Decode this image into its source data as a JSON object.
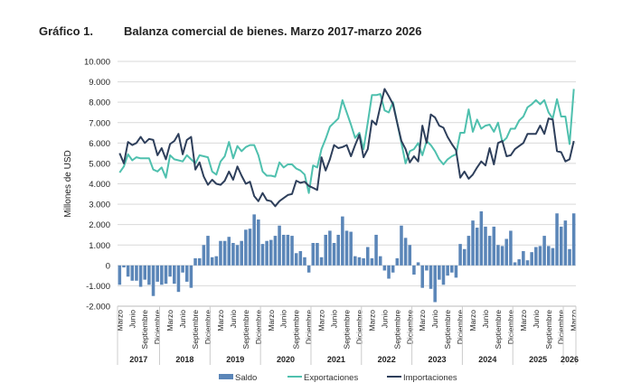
{
  "header": {
    "label": "Gráfico 1.",
    "title": "Balanza comercial de bienes. Marzo 2017-marzo 2026"
  },
  "colors": {
    "saldo": "#5b86b8",
    "exportaciones": "#4fc0ae",
    "importaciones": "#2e3f5b",
    "grid": "#d9d9d9"
  },
  "chart_data": {
    "type": "bar+line",
    "title": "Balanza comercial de bienes. Marzo 2017-marzo 2026",
    "ylabel": "Millones de USD",
    "ylim": [
      -2000,
      10000
    ],
    "yticks": [
      "-2.000",
      "-1.000",
      "0",
      "1.000",
      "2.000",
      "3.000",
      "4.000",
      "5.000",
      "6.000",
      "7.000",
      "8.000",
      "9.000",
      "10.000"
    ],
    "ytick_values": [
      -2000,
      -1000,
      0,
      1000,
      2000,
      3000,
      4000,
      5000,
      6000,
      7000,
      8000,
      9000,
      10000
    ],
    "grid": true,
    "legend": "bottom",
    "x_start": "Marzo 2017",
    "x_end": "Marzo 2026",
    "month_tick_labels": [
      "Marzo",
      "Junio",
      "Septiembre",
      "Diciembre"
    ],
    "years": [
      "2017",
      "2018",
      "2019",
      "2020",
      "2021",
      "2022",
      "2023",
      "2024",
      "2025",
      "2026"
    ],
    "series": [
      {
        "name": "Saldo",
        "type": "bar",
        "values": [
          -950,
          -100,
          -550,
          -750,
          -750,
          -1050,
          -700,
          -950,
          -1500,
          -800,
          -950,
          -900,
          -550,
          -900,
          -1300,
          -350,
          -800,
          -1100,
          350,
          350,
          1000,
          1450,
          400,
          450,
          1200,
          1200,
          1400,
          1100,
          1000,
          1200,
          1750,
          1800,
          2500,
          2250,
          1050,
          1200,
          1250,
          1450,
          1950,
          1500,
          1500,
          1450,
          600,
          700,
          400,
          -350,
          1100,
          1100,
          400,
          1500,
          1700,
          1100,
          1500,
          2400,
          1700,
          1650,
          450,
          400,
          350,
          900,
          350,
          1500,
          450,
          -250,
          -650,
          -350,
          350,
          1950,
          1350,
          1000,
          -450,
          150,
          -1100,
          -250,
          -1150,
          -1800,
          -700,
          -950,
          -500,
          -350,
          -600,
          1050,
          800,
          1450,
          2200,
          1850,
          2650,
          1900,
          1450,
          1900,
          1000,
          950,
          1300,
          1700,
          150,
          300,
          700,
          250,
          650,
          900,
          950,
          1450,
          950,
          850,
          2550,
          1900,
          2200,
          800,
          2550
        ]
      },
      {
        "name": "Exportaciones",
        "type": "line",
        "values": [
          4550,
          4850,
          5450,
          5150,
          5300,
          5250,
          5250,
          5250,
          4700,
          4600,
          4800,
          4300,
          5400,
          5200,
          5150,
          5100,
          5400,
          5200,
          5000,
          5400,
          5350,
          5300,
          4600,
          4450,
          5100,
          5350,
          6050,
          5250,
          5850,
          5600,
          5800,
          5900,
          5900,
          5400,
          4600,
          4400,
          4400,
          4350,
          5050,
          4800,
          4950,
          4950,
          4750,
          4650,
          4450,
          3550,
          4900,
          4800,
          5700,
          6200,
          6800,
          7000,
          7200,
          8100,
          7500,
          6900,
          6250,
          6500,
          5700,
          7000,
          8350,
          8350,
          8400,
          7600,
          7500,
          8000,
          7000,
          6000,
          5000,
          5600,
          5700,
          6000,
          5400,
          6100,
          5900,
          5600,
          5200,
          4950,
          5200,
          5350,
          5450,
          6500,
          6500,
          7650,
          6550,
          7150,
          6700,
          6850,
          6900,
          6550,
          7000,
          6050,
          6250,
          6700,
          6700,
          7100,
          7300,
          7750,
          7900,
          8100,
          7900,
          8100,
          7500,
          7200,
          8150,
          7300,
          7300,
          5950,
          8650
        ]
      },
      {
        "name": "Importaciones",
        "type": "line",
        "values": [
          5500,
          5000,
          6050,
          5900,
          6000,
          6300,
          6000,
          6200,
          6150,
          5400,
          5750,
          5200,
          5950,
          6100,
          6450,
          5450,
          6150,
          6300,
          4700,
          5050,
          4350,
          3950,
          4200,
          4000,
          3950,
          4150,
          4600,
          4200,
          4850,
          4400,
          4000,
          4100,
          3400,
          3150,
          3550,
          3200,
          3150,
          2900,
          3150,
          3300,
          3450,
          3500,
          4150,
          4050,
          4100,
          3900,
          3800,
          3700,
          5300,
          4650,
          5200,
          5900,
          5750,
          5800,
          5900,
          5350,
          5900,
          6400,
          5300,
          5700,
          7100,
          6900,
          7800,
          8650,
          8300,
          7900,
          7000,
          6100,
          5700,
          5050,
          5350,
          5100,
          6850,
          6000,
          7400,
          7250,
          6850,
          6750,
          6300,
          5950,
          5650,
          4300,
          4600,
          4250,
          4450,
          4800,
          5100,
          4900,
          5750,
          4950,
          6000,
          6100,
          5350,
          5400,
          5700,
          5850,
          6000,
          6450,
          6450,
          6450,
          6850,
          6450,
          7200,
          7150,
          5600,
          5550,
          5100,
          5200,
          6100
        ]
      }
    ]
  }
}
